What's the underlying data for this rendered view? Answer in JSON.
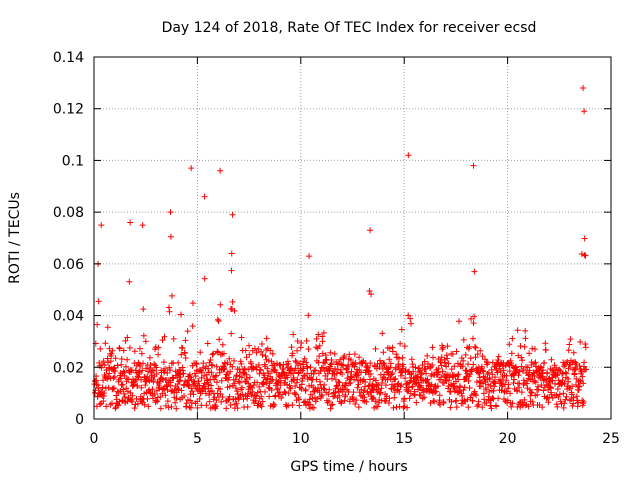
{
  "chart_data": {
    "type": "scatter",
    "title": "Day 124 of 2018, Rate Of TEC Index for receiver ecsd",
    "xlabel": "GPS time / hours",
    "ylabel": "ROTI / TECUs",
    "xlim": [
      0,
      25
    ],
    "ylim": [
      0,
      0.14
    ],
    "x_ticks": [
      0,
      5,
      10,
      15,
      20,
      25
    ],
    "x_tick_labels": [
      "0",
      "5",
      "10",
      "15",
      "20",
      "25"
    ],
    "y_ticks": [
      0,
      0.02,
      0.04,
      0.06,
      0.08,
      0.1,
      0.12,
      0.14
    ],
    "y_tick_labels": [
      "0",
      "0.02",
      "0.04",
      "0.06",
      "0.08",
      "0.1",
      "0.12",
      "0.14"
    ],
    "grid": true,
    "marker": "+",
    "color": "#ff0000",
    "data_extent_hours": [
      0,
      23.8
    ],
    "peaks": [
      {
        "x": 0.2,
        "y": 0.06
      },
      {
        "x": 0.35,
        "y": 0.075
      },
      {
        "x": 1.75,
        "y": 0.076
      },
      {
        "x": 2.35,
        "y": 0.075
      },
      {
        "x": 3.7,
        "y": 0.08
      },
      {
        "x": 4.7,
        "y": 0.097
      },
      {
        "x": 5.35,
        "y": 0.086
      },
      {
        "x": 6.1,
        "y": 0.096
      },
      {
        "x": 6.7,
        "y": 0.079
      },
      {
        "x": 10.4,
        "y": 0.063
      },
      {
        "x": 13.35,
        "y": 0.073
      },
      {
        "x": 15.2,
        "y": 0.102
      },
      {
        "x": 18.35,
        "y": 0.098
      },
      {
        "x": 23.65,
        "y": 0.128
      },
      {
        "x": 23.7,
        "y": 0.119
      }
    ],
    "series": [
      {
        "name": "ROTI",
        "x": [],
        "y": []
      }
    ]
  }
}
